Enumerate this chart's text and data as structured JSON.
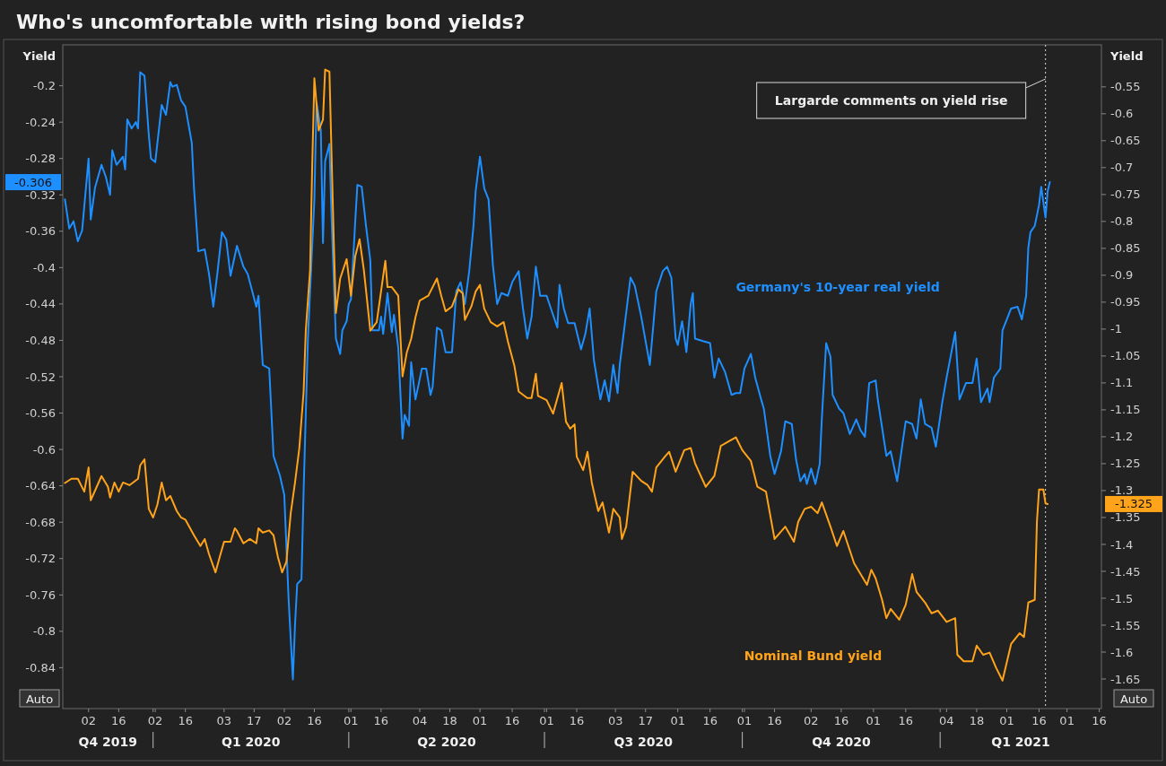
{
  "chart_data": {
    "type": "line",
    "title": "Who's uncomfortable with rising bond yields?",
    "ylabel": "Yield",
    "y2label": "Yield",
    "xlim": [
      "2019-11-20",
      "2021-03-17"
    ],
    "xticks": [
      {
        "value": "2019-12-02",
        "label": "02"
      },
      {
        "value": "2019-12-16",
        "label": "16"
      },
      {
        "value": "2020-01-01",
        "label": null
      },
      {
        "value": "2020-01-02",
        "label": "02"
      },
      {
        "value": "2020-01-16",
        "label": "16"
      },
      {
        "value": "2020-02-03",
        "label": "03"
      },
      {
        "value": "2020-02-17",
        "label": "17"
      },
      {
        "value": "2020-03-02",
        "label": "02"
      },
      {
        "value": "2020-03-16",
        "label": "16"
      },
      {
        "value": "2020-04-01",
        "label": null
      },
      {
        "value": "2020-04-02",
        "label": "01"
      },
      {
        "value": "2020-04-16",
        "label": "16"
      },
      {
        "value": "2020-05-04",
        "label": "04"
      },
      {
        "value": "2020-05-18",
        "label": "18"
      },
      {
        "value": "2020-06-01",
        "label": "01"
      },
      {
        "value": "2020-06-16",
        "label": "16"
      },
      {
        "value": "2020-07-01",
        "label": null
      },
      {
        "value": "2020-07-02",
        "label": "01"
      },
      {
        "value": "2020-07-16",
        "label": "16"
      },
      {
        "value": "2020-08-03",
        "label": "03"
      },
      {
        "value": "2020-08-17",
        "label": "17"
      },
      {
        "value": "2020-09-01",
        "label": "01"
      },
      {
        "value": "2020-09-16",
        "label": "16"
      },
      {
        "value": "2020-10-01",
        "label": null
      },
      {
        "value": "2020-10-02",
        "label": "01"
      },
      {
        "value": "2020-10-16",
        "label": "16"
      },
      {
        "value": "2020-11-02",
        "label": "02"
      },
      {
        "value": "2020-11-16",
        "label": "16"
      },
      {
        "value": "2020-12-01",
        "label": "01"
      },
      {
        "value": "2020-12-16",
        "label": "16"
      },
      {
        "value": "2021-01-01",
        "label": null
      },
      {
        "value": "2021-01-04",
        "label": "04"
      },
      {
        "value": "2021-01-18",
        "label": "18"
      },
      {
        "value": "2021-02-01",
        "label": "01"
      },
      {
        "value": "2021-02-16",
        "label": "16"
      },
      {
        "value": "2021-03-01",
        "label": "01"
      },
      {
        "value": "2021-03-16",
        "label": "16"
      }
    ],
    "ylim": [
      -0.885,
      -0.155
    ],
    "yticks": [
      -0.2,
      -0.24,
      -0.28,
      -0.32,
      -0.36,
      -0.4,
      -0.44,
      -0.48,
      -0.52,
      -0.56,
      -0.6,
      -0.64,
      -0.68,
      -0.72,
      -0.76,
      -0.8,
      -0.84
    ],
    "y2lim": [
      -1.705,
      -0.472
    ],
    "y2ticks": [
      -0.55,
      -0.6,
      -0.65,
      -0.7,
      -0.75,
      -0.8,
      -0.85,
      -0.9,
      -0.95,
      -1,
      -1.05,
      -1.1,
      -1.15,
      -1.2,
      -1.25,
      -1.3,
      -1.35,
      -1.4,
      -1.45,
      -1.5,
      -1.55,
      -1.6,
      -1.65
    ],
    "grid": false,
    "legend": false,
    "ref_lines": [
      {
        "axis": "x",
        "value": "2021-02-19",
        "label": "Largarde comments on yield rise",
        "color": "#d9d9d9",
        "line_style": "dotted"
      }
    ],
    "annotations": [
      "Auto",
      "Auto",
      "-0.306",
      "-1.325",
      "Q4 2019",
      "Q1 2020",
      "Q2 2020",
      "Q3 2020",
      "Q4 2020",
      "Q1 2021"
    ],
    "series": [
      {
        "name": "Germany's 10-year real yield",
        "color": "#1e8fff",
        "axis": "y",
        "x": [
          "2019-11-21",
          "2019-11-23",
          "2019-11-25",
          "2019-11-27",
          "2019-11-29",
          "2019-12-02",
          "2019-12-03",
          "2019-12-05",
          "2019-12-08",
          "2019-12-10",
          "2019-12-12",
          "2019-12-13",
          "2019-12-15",
          "2019-12-18",
          "2019-12-19",
          "2019-12-20",
          "2019-12-22",
          "2019-12-24",
          "2019-12-25",
          "2019-12-26",
          "2019-12-28",
          "2019-12-30",
          "2019-12-31",
          "2020-01-02",
          "2020-01-04",
          "2020-01-05",
          "2020-01-07",
          "2020-01-09",
          "2020-01-10",
          "2020-01-12",
          "2020-01-14",
          "2020-01-16",
          "2020-01-19",
          "2020-01-20",
          "2020-01-22",
          "2020-01-25",
          "2020-01-27",
          "2020-01-29",
          "2020-01-31",
          "2020-02-02",
          "2020-02-04",
          "2020-02-06",
          "2020-02-09",
          "2020-02-12",
          "2020-02-14",
          "2020-02-18",
          "2020-02-19",
          "2020-02-21",
          "2020-02-24",
          "2020-02-26",
          "2020-02-29",
          "2020-03-02",
          "2020-03-04",
          "2020-03-06",
          "2020-03-07",
          "2020-03-08",
          "2020-03-10",
          "2020-03-11",
          "2020-03-13",
          "2020-03-14",
          "2020-03-16",
          "2020-03-17",
          "2020-03-19",
          "2020-03-20",
          "2020-03-21",
          "2020-03-23",
          "2020-03-24",
          "2020-03-26",
          "2020-03-28",
          "2020-03-29",
          "2020-03-31",
          "2020-04-01",
          "2020-04-02",
          "2020-04-04",
          "2020-04-05",
          "2020-04-07",
          "2020-04-09",
          "2020-04-11",
          "2020-04-12",
          "2020-04-15",
          "2020-04-16",
          "2020-04-17",
          "2020-04-19",
          "2020-04-21",
          "2020-04-22",
          "2020-04-24",
          "2020-04-26",
          "2020-04-27",
          "2020-04-29",
          "2020-04-30",
          "2020-05-02",
          "2020-05-05",
          "2020-05-07",
          "2020-05-09",
          "2020-05-10",
          "2020-05-12",
          "2020-05-14",
          "2020-05-16",
          "2020-05-19",
          "2020-05-21",
          "2020-05-23",
          "2020-05-25",
          "2020-05-27",
          "2020-05-29",
          "2020-05-30",
          "2020-06-01",
          "2020-06-03",
          "2020-06-05",
          "2020-06-07",
          "2020-06-09",
          "2020-06-11",
          "2020-06-14",
          "2020-06-16",
          "2020-06-19",
          "2020-06-21",
          "2020-06-23",
          "2020-06-25",
          "2020-06-27",
          "2020-06-29",
          "2020-07-02",
          "2020-07-04",
          "2020-07-07",
          "2020-07-08",
          "2020-07-10",
          "2020-07-12",
          "2020-07-15",
          "2020-07-18",
          "2020-07-20",
          "2020-07-22",
          "2020-07-24",
          "2020-07-27",
          "2020-07-29",
          "2020-07-31",
          "2020-08-02",
          "2020-08-04",
          "2020-08-05",
          "2020-08-07",
          "2020-08-10",
          "2020-08-12",
          "2020-08-15",
          "2020-08-19",
          "2020-08-22",
          "2020-08-25",
          "2020-08-27",
          "2020-08-29",
          "2020-08-31",
          "2020-09-01",
          "2020-09-03",
          "2020-09-05",
          "2020-09-07",
          "2020-09-08",
          "2020-09-09",
          "2020-09-13",
          "2020-09-16",
          "2020-09-18",
          "2020-09-20",
          "2020-09-23",
          "2020-09-26",
          "2020-09-28",
          "2020-09-30",
          "2020-10-02",
          "2020-10-05",
          "2020-10-07",
          "2020-10-10",
          "2020-10-11",
          "2020-10-14",
          "2020-10-16",
          "2020-10-19",
          "2020-10-21",
          "2020-10-24",
          "2020-10-26",
          "2020-10-28",
          "2020-10-30",
          "2020-10-31",
          "2020-11-02",
          "2020-11-04",
          "2020-11-06",
          "2020-11-07",
          "2020-11-09",
          "2020-11-11",
          "2020-11-12",
          "2020-11-15",
          "2020-11-17",
          "2020-11-20",
          "2020-11-23",
          "2020-11-25",
          "2020-11-27",
          "2020-11-29",
          "2020-12-02",
          "2020-12-03",
          "2020-12-05",
          "2020-12-07",
          "2020-12-09",
          "2020-12-12",
          "2020-12-14",
          "2020-12-16",
          "2020-12-19",
          "2020-12-21",
          "2020-12-23",
          "2020-12-25",
          "2020-12-28",
          "2020-12-30",
          "2021-01-02",
          "2021-01-04",
          "2021-01-08",
          "2021-01-10",
          "2021-01-13",
          "2021-01-16",
          "2021-01-18",
          "2021-01-20",
          "2021-01-23",
          "2021-01-24",
          "2021-01-26",
          "2021-01-29",
          "2021-01-30",
          "2021-02-03",
          "2021-02-06",
          "2021-02-08",
          "2021-02-10",
          "2021-02-11",
          "2021-02-12",
          "2021-02-14",
          "2021-02-16",
          "2021-02-17",
          "2021-02-19",
          "2021-02-20",
          "2021-02-21"
        ],
        "values": [
          -0.325,
          -0.357,
          -0.349,
          -0.371,
          -0.359,
          -0.28,
          -0.347,
          -0.312,
          -0.287,
          -0.3,
          -0.32,
          -0.271,
          -0.287,
          -0.278,
          -0.292,
          -0.237,
          -0.247,
          -0.24,
          -0.247,
          -0.185,
          -0.189,
          -0.254,
          -0.28,
          -0.284,
          -0.242,
          -0.221,
          -0.232,
          -0.196,
          -0.201,
          -0.199,
          -0.216,
          -0.223,
          -0.263,
          -0.312,
          -0.382,
          -0.38,
          -0.407,
          -0.443,
          -0.404,
          -0.361,
          -0.369,
          -0.409,
          -0.376,
          -0.399,
          -0.407,
          -0.443,
          -0.431,
          -0.507,
          -0.511,
          -0.607,
          -0.629,
          -0.65,
          -0.764,
          -0.853,
          -0.793,
          -0.748,
          -0.743,
          -0.645,
          -0.478,
          -0.426,
          -0.325,
          -0.218,
          -0.249,
          -0.373,
          -0.283,
          -0.264,
          -0.345,
          -0.478,
          -0.495,
          -0.469,
          -0.459,
          -0.44,
          -0.435,
          -0.349,
          -0.309,
          -0.311,
          -0.354,
          -0.392,
          -0.469,
          -0.469,
          -0.454,
          -0.473,
          -0.428,
          -0.471,
          -0.452,
          -0.488,
          -0.588,
          -0.562,
          -0.574,
          -0.504,
          -0.545,
          -0.511,
          -0.511,
          -0.54,
          -0.531,
          -0.466,
          -0.469,
          -0.493,
          -0.493,
          -0.426,
          -0.416,
          -0.44,
          -0.404,
          -0.354,
          -0.316,
          -0.278,
          -0.313,
          -0.325,
          -0.397,
          -0.44,
          -0.428,
          -0.431,
          -0.416,
          -0.404,
          -0.445,
          -0.478,
          -0.454,
          -0.399,
          -0.431,
          -0.431,
          -0.445,
          -0.466,
          -0.419,
          -0.445,
          -0.461,
          -0.461,
          -0.49,
          -0.473,
          -0.445,
          -0.502,
          -0.545,
          -0.524,
          -0.547,
          -0.507,
          -0.538,
          -0.507,
          -0.469,
          -0.411,
          -0.42,
          -0.454,
          -0.507,
          -0.426,
          -0.404,
          -0.399,
          -0.411,
          -0.478,
          -0.485,
          -0.459,
          -0.493,
          -0.44,
          -0.428,
          -0.478,
          -0.481,
          -0.483,
          -0.521,
          -0.5,
          -0.515,
          -0.54,
          -0.538,
          -0.538,
          -0.511,
          -0.495,
          -0.521,
          -0.547,
          -0.555,
          -0.607,
          -0.627,
          -0.602,
          -0.569,
          -0.572,
          -0.611,
          -0.635,
          -0.627,
          -0.638,
          -0.621,
          -0.638,
          -0.616,
          -0.565,
          -0.483,
          -0.498,
          -0.54,
          -0.555,
          -0.56,
          -0.583,
          -0.567,
          -0.579,
          -0.586,
          -0.527,
          -0.524,
          -0.545,
          -0.576,
          -0.607,
          -0.602,
          -0.635,
          -0.602,
          -0.569,
          -0.572,
          -0.588,
          -0.545,
          -0.572,
          -0.576,
          -0.597,
          -0.548,
          -0.521,
          -0.471,
          -0.545,
          -0.527,
          -0.527,
          -0.5,
          -0.548,
          -0.533,
          -0.548,
          -0.521,
          -0.511,
          -0.469,
          -0.445,
          -0.443,
          -0.457,
          -0.431,
          -0.378,
          -0.361,
          -0.354,
          -0.331,
          -0.311,
          -0.345,
          -0.316,
          -0.306
        ]
      },
      {
        "name": "Nominal Bund yield",
        "color": "#ffa31a",
        "axis": "y2",
        "x": [
          "2019-11-21",
          "2019-11-24",
          "2019-11-27",
          "2019-11-30",
          "2019-12-02",
          "2019-12-03",
          "2019-12-08",
          "2019-12-11",
          "2019-12-12",
          "2019-12-14",
          "2019-12-16",
          "2019-12-18",
          "2019-12-21",
          "2019-12-25",
          "2019-12-26",
          "2019-12-28",
          "2019-12-30",
          "2020-01-01",
          "2020-01-03",
          "2020-01-05",
          "2020-01-07",
          "2020-01-09",
          "2020-01-12",
          "2020-01-14",
          "2020-01-16",
          "2020-01-20",
          "2020-01-23",
          "2020-01-25",
          "2020-01-27",
          "2020-01-30",
          "2020-02-01",
          "2020-02-03",
          "2020-02-06",
          "2020-02-08",
          "2020-02-09",
          "2020-02-12",
          "2020-02-15",
          "2020-02-18",
          "2020-02-19",
          "2020-02-21",
          "2020-02-24",
          "2020-02-26",
          "2020-02-28",
          "2020-03-01",
          "2020-03-03",
          "2020-03-05",
          "2020-03-07",
          "2020-03-09",
          "2020-03-11",
          "2020-03-12",
          "2020-03-14",
          "2020-03-15",
          "2020-03-16",
          "2020-03-18",
          "2020-03-20",
          "2020-03-21",
          "2020-03-23",
          "2020-03-25",
          "2020-03-26",
          "2020-03-28",
          "2020-03-31",
          "2020-04-02",
          "2020-04-04",
          "2020-04-06",
          "2020-04-08",
          "2020-04-11",
          "2020-04-14",
          "2020-04-18",
          "2020-04-19",
          "2020-04-21",
          "2020-04-24",
          "2020-04-26",
          "2020-04-28",
          "2020-04-30",
          "2020-05-02",
          "2020-05-04",
          "2020-05-08",
          "2020-05-12",
          "2020-05-14",
          "2020-05-16",
          "2020-05-19",
          "2020-05-22",
          "2020-05-24",
          "2020-05-25",
          "2020-05-28",
          "2020-05-30",
          "2020-06-01",
          "2020-06-03",
          "2020-06-06",
          "2020-06-09",
          "2020-06-12",
          "2020-06-14",
          "2020-06-17",
          "2020-06-19",
          "2020-06-23",
          "2020-06-25",
          "2020-06-27",
          "2020-06-28",
          "2020-07-02",
          "2020-07-05",
          "2020-07-09",
          "2020-07-11",
          "2020-07-13",
          "2020-07-15",
          "2020-07-16",
          "2020-07-19",
          "2020-07-21",
          "2020-07-23",
          "2020-07-26",
          "2020-07-28",
          "2020-07-31",
          "2020-08-02",
          "2020-08-05",
          "2020-08-06",
          "2020-08-08",
          "2020-08-11",
          "2020-08-15",
          "2020-08-18",
          "2020-08-20",
          "2020-08-22",
          "2020-08-26",
          "2020-08-28",
          "2020-08-31",
          "2020-09-04",
          "2020-09-07",
          "2020-09-09",
          "2020-09-14",
          "2020-09-18",
          "2020-09-21",
          "2020-09-25",
          "2020-09-28",
          "2020-10-01",
          "2020-10-05",
          "2020-10-08",
          "2020-10-12",
          "2020-10-16",
          "2020-10-21",
          "2020-10-25",
          "2020-10-27",
          "2020-10-30",
          "2020-11-02",
          "2020-11-05",
          "2020-11-07",
          "2020-11-11",
          "2020-11-14",
          "2020-11-17",
          "2020-11-22",
          "2020-11-28",
          "2020-11-30",
          "2020-12-02",
          "2020-12-05",
          "2020-12-07",
          "2020-12-09",
          "2020-12-13",
          "2020-12-16",
          "2020-12-19",
          "2020-12-21",
          "2020-12-25",
          "2020-12-28",
          "2020-12-31",
          "2021-01-04",
          "2021-01-08",
          "2021-01-09",
          "2021-01-12",
          "2021-01-16",
          "2021-01-18",
          "2021-01-21",
          "2021-01-24",
          "2021-01-27",
          "2021-01-30",
          "2021-02-03",
          "2021-02-07",
          "2021-02-09",
          "2021-02-11",
          "2021-02-14",
          "2021-02-15",
          "2021-02-16",
          "2021-02-18",
          "2021-02-19",
          "2021-02-20"
        ],
        "values": [
          -1.286,
          -1.278,
          -1.278,
          -1.302,
          -1.257,
          -1.318,
          -1.273,
          -1.293,
          -1.313,
          -1.285,
          -1.302,
          -1.285,
          -1.29,
          -1.278,
          -1.253,
          -1.242,
          -1.334,
          -1.35,
          -1.326,
          -1.285,
          -1.318,
          -1.31,
          -1.338,
          -1.35,
          -1.354,
          -1.383,
          -1.403,
          -1.39,
          -1.418,
          -1.452,
          -1.423,
          -1.395,
          -1.395,
          -1.37,
          -1.375,
          -1.398,
          -1.39,
          -1.398,
          -1.37,
          -1.378,
          -1.374,
          -1.383,
          -1.423,
          -1.452,
          -1.432,
          -1.342,
          -1.285,
          -1.221,
          -1.116,
          -1.003,
          -0.89,
          -0.695,
          -0.534,
          -0.631,
          -0.611,
          -0.518,
          -0.522,
          -0.833,
          -0.97,
          -0.906,
          -0.87,
          -0.938,
          -0.865,
          -0.833,
          -0.89,
          -1.003,
          -0.987,
          -0.873,
          -0.922,
          -0.922,
          -0.938,
          -1.088,
          -1.043,
          -1.018,
          -0.978,
          -0.947,
          -0.938,
          -0.906,
          -0.938,
          -0.967,
          -0.958,
          -0.926,
          -0.934,
          -0.983,
          -0.958,
          -0.93,
          -0.918,
          -0.962,
          -0.987,
          -0.995,
          -0.987,
          -1.023,
          -1.068,
          -1.116,
          -1.128,
          -1.128,
          -1.083,
          -1.124,
          -1.132,
          -1.157,
          -1.1,
          -1.172,
          -1.185,
          -1.177,
          -1.237,
          -1.262,
          -1.228,
          -1.285,
          -1.338,
          -1.322,
          -1.378,
          -1.334,
          -1.35,
          -1.39,
          -1.367,
          -1.265,
          -1.282,
          -1.29,
          -1.302,
          -1.257,
          -1.237,
          -1.228,
          -1.265,
          -1.225,
          -1.221,
          -1.249,
          -1.293,
          -1.273,
          -1.217,
          -1.208,
          -1.201,
          -1.225,
          -1.245,
          -1.293,
          -1.302,
          -1.39,
          -1.367,
          -1.395,
          -1.358,
          -1.334,
          -1.33,
          -1.342,
          -1.322,
          -1.367,
          -1.403,
          -1.375,
          -1.435,
          -1.475,
          -1.447,
          -1.463,
          -1.503,
          -1.537,
          -1.52,
          -1.54,
          -1.512,
          -1.455,
          -1.488,
          -1.508,
          -1.528,
          -1.523,
          -1.544,
          -1.537,
          -1.605,
          -1.617,
          -1.617,
          -1.588,
          -1.605,
          -1.601,
          -1.629,
          -1.653,
          -1.585,
          -1.565,
          -1.572,
          -1.508,
          -1.503,
          -1.358,
          -1.298,
          -1.298,
          -1.324,
          -1.325
        ]
      }
    ]
  }
}
